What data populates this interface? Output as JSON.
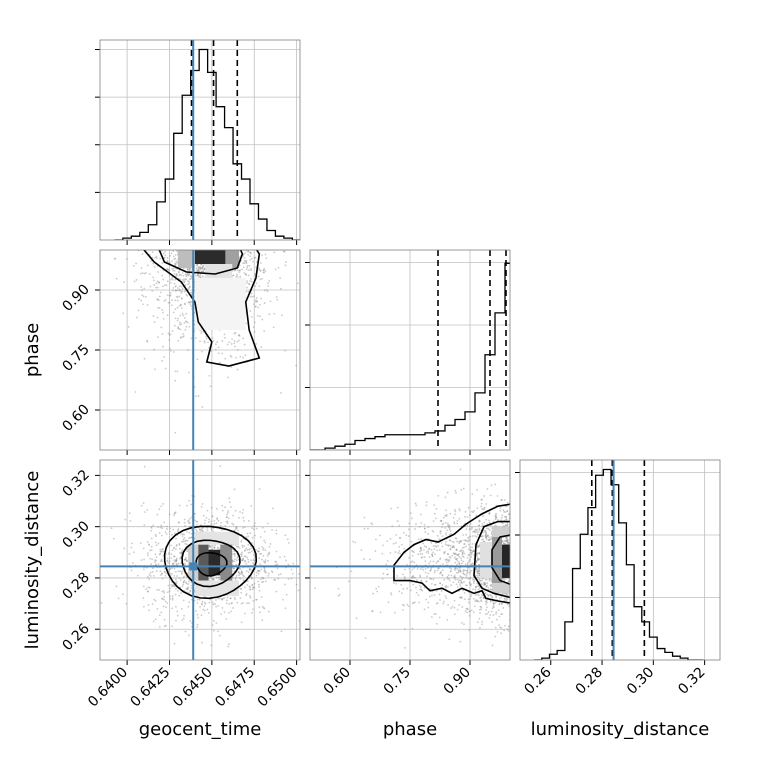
{
  "chart_data": [
    {
      "type": "histogram",
      "panel": "geocent_time",
      "xlim": [
        0.6384,
        0.6502
      ],
      "bins_x": [
        0.6395,
        0.64,
        0.6405,
        0.641,
        0.6415,
        0.642,
        0.6425,
        0.643,
        0.6435,
        0.644,
        0.6445,
        0.645,
        0.6455,
        0.646,
        0.6465,
        0.647,
        0.6475,
        0.648,
        0.6485,
        0.649,
        0.6495,
        0.65
      ],
      "counts": [
        0.0,
        0.01,
        0.02,
        0.04,
        0.08,
        0.2,
        0.32,
        0.56,
        0.76,
        0.89,
        1.0,
        0.88,
        0.7,
        0.59,
        0.4,
        0.32,
        0.19,
        0.11,
        0.05,
        0.02,
        0.01,
        0.0
      ],
      "quantile_lines": [
        0.6438,
        0.6451,
        0.6465
      ],
      "truth": 0.6439
    },
    {
      "type": "scatter+contour",
      "panel": "phase vs geocent_time",
      "xlim": [
        0.6384,
        0.6502
      ],
      "ylim": [
        0.5,
        1.0
      ],
      "density_peak": {
        "x": 0.6447,
        "y": 0.99
      },
      "truth": {
        "x": 0.6439
      }
    },
    {
      "type": "histogram",
      "panel": "phase",
      "xlim": [
        0.5,
        1.0
      ],
      "bins_x": [
        0.5,
        0.525,
        0.55,
        0.575,
        0.6,
        0.625,
        0.65,
        0.675,
        0.7,
        0.725,
        0.75,
        0.775,
        0.8,
        0.825,
        0.85,
        0.875,
        0.9,
        0.925,
        0.95,
        0.975,
        1.0
      ],
      "counts": [
        0.0,
        0.0,
        0.01,
        0.02,
        0.03,
        0.05,
        0.06,
        0.07,
        0.08,
        0.08,
        0.08,
        0.08,
        0.09,
        0.1,
        0.13,
        0.16,
        0.2,
        0.3,
        0.5,
        0.72,
        0.98
      ],
      "quantile_lines": [
        0.82,
        0.95,
        0.99
      ]
    },
    {
      "type": "scatter+contour",
      "panel": "luminosity_distance vs geocent_time",
      "xlim": [
        0.6384,
        0.6502
      ],
      "ylim": [
        0.248,
        0.326
      ],
      "density_peak": {
        "x": 0.6447,
        "y": 0.285
      },
      "truth": {
        "x": 0.6439,
        "y": 0.2845
      }
    },
    {
      "type": "scatter+contour",
      "panel": "luminosity_distance vs phase",
      "xlim": [
        0.5,
        1.0
      ],
      "ylim": [
        0.248,
        0.326
      ],
      "density_peak": {
        "x": 0.99,
        "y": 0.287
      },
      "truth": {
        "y": 0.2845
      }
    },
    {
      "type": "histogram",
      "panel": "luminosity_distance",
      "xlim": [
        0.248,
        0.326
      ],
      "bins_x": [
        0.255,
        0.258,
        0.261,
        0.264,
        0.267,
        0.27,
        0.273,
        0.276,
        0.279,
        0.282,
        0.285,
        0.288,
        0.291,
        0.294,
        0.297,
        0.3,
        0.303,
        0.306,
        0.309,
        0.312,
        0.315,
        0.318
      ],
      "counts": [
        0.0,
        0.01,
        0.03,
        0.05,
        0.2,
        0.48,
        0.66,
        0.8,
        0.97,
        1.0,
        0.92,
        0.72,
        0.5,
        0.28,
        0.2,
        0.12,
        0.06,
        0.04,
        0.02,
        0.01,
        0.0,
        0.0
      ],
      "quantile_lines": [
        0.276,
        0.284,
        0.2965
      ],
      "truth": 0.2845
    }
  ],
  "axes": {
    "geocent_time": {
      "label": "geocent_time",
      "ticks": [
        "0.6400",
        "0.6425",
        "0.6450",
        "0.6475",
        "0.6500"
      ],
      "values": [
        0.64,
        0.6425,
        0.645,
        0.6475,
        0.65
      ]
    },
    "phase": {
      "label": "phase",
      "ticks": [
        "0.60",
        "0.75",
        "0.90"
      ],
      "values": [
        0.6,
        0.75,
        0.9
      ]
    },
    "luminosity_distance": {
      "label": "luminosity_distance",
      "ticks": [
        "0.26",
        "0.28",
        "0.30",
        "0.32"
      ],
      "values": [
        0.26,
        0.28,
        0.3,
        0.32
      ]
    }
  },
  "colors": {
    "truth": "#4682b4",
    "hist": "#000000",
    "grid": "#c0c0c0",
    "scatter": "#8c8c8c"
  }
}
